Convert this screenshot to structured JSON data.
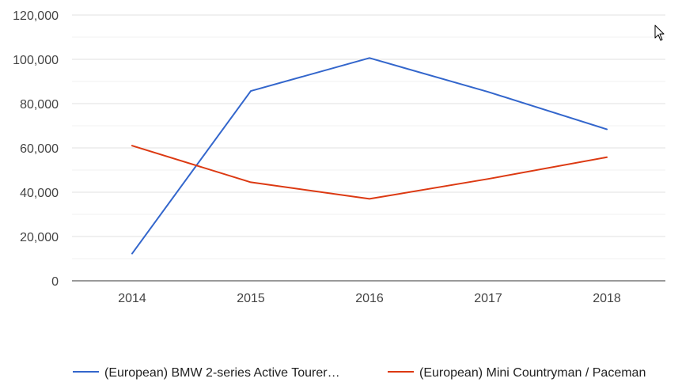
{
  "chart_data": {
    "type": "line",
    "title": "",
    "xlabel": "",
    "ylabel": "",
    "categories": [
      "2014",
      "2015",
      "2016",
      "2017",
      "2018"
    ],
    "ylim": [
      0,
      120000
    ],
    "y_ticks": [
      0,
      20000,
      40000,
      60000,
      80000,
      100000,
      120000
    ],
    "y_tick_labels": [
      "0",
      "20,000",
      "40,000",
      "60,000",
      "80,000",
      "100,000",
      "120,000"
    ],
    "grid": true,
    "legend_position": "bottom",
    "series": [
      {
        "name": "(European) BMW 2-series Active Tourer…",
        "color": "#3366cc",
        "values": [
          12300,
          85700,
          100600,
          85300,
          68400
        ]
      },
      {
        "name": "(European) Mini Countryman / Paceman",
        "color": "#dc3912",
        "values": [
          61000,
          44500,
          37000,
          46000,
          55800
        ]
      }
    ]
  },
  "cursor_icon": "mouse-pointer-icon"
}
